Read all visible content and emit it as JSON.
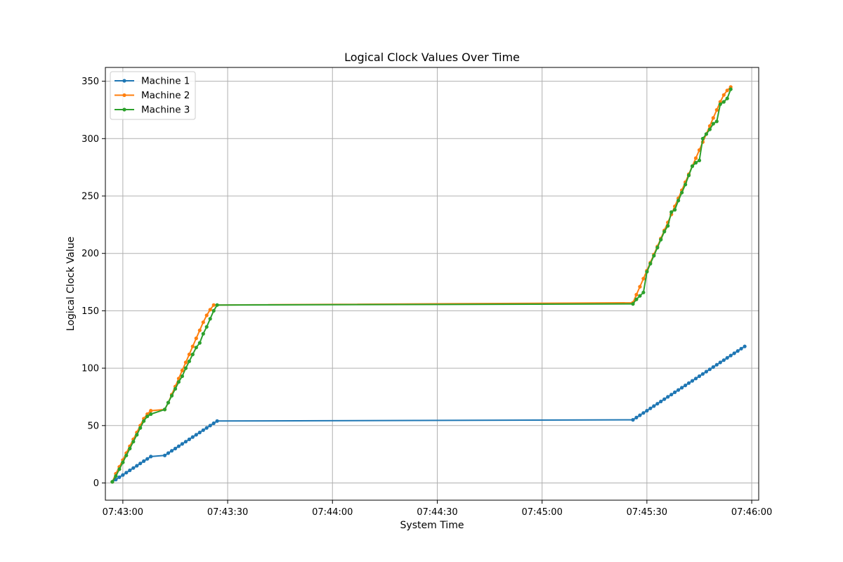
{
  "chart_data": {
    "type": "line",
    "title": "Logical Clock Values Over Time",
    "xlabel": "System Time",
    "ylabel": "Logical Clock Value",
    "xlim": [
      "07:42:55",
      "07:46:02"
    ],
    "ylim": [
      -15,
      362
    ],
    "xticks": [
      "07:43:00",
      "07:43:30",
      "07:44:00",
      "07:44:30",
      "07:45:00",
      "07:45:30",
      "07:46:00"
    ],
    "yticks": [
      0,
      50,
      100,
      150,
      200,
      250,
      300,
      350
    ],
    "grid": true,
    "legend_position": "top-left",
    "series": [
      {
        "name": "Machine 1",
        "color": "#1f77b4",
        "points": [
          [
            "07:42:57",
            1
          ],
          [
            "07:42:58",
            3
          ],
          [
            "07:42:59",
            5
          ],
          [
            "07:43:00",
            7
          ],
          [
            "07:43:01",
            9
          ],
          [
            "07:43:02",
            11
          ],
          [
            "07:43:03",
            13
          ],
          [
            "07:43:04",
            15
          ],
          [
            "07:43:05",
            17
          ],
          [
            "07:43:06",
            19
          ],
          [
            "07:43:07",
            21
          ],
          [
            "07:43:08",
            23
          ],
          [
            "07:43:12",
            24
          ],
          [
            "07:43:13",
            26
          ],
          [
            "07:43:14",
            28
          ],
          [
            "07:43:15",
            30
          ],
          [
            "07:43:16",
            32
          ],
          [
            "07:43:17",
            34
          ],
          [
            "07:43:18",
            36
          ],
          [
            "07:43:19",
            38
          ],
          [
            "07:43:20",
            40
          ],
          [
            "07:43:21",
            42
          ],
          [
            "07:43:22",
            44
          ],
          [
            "07:43:23",
            46
          ],
          [
            "07:43:24",
            48
          ],
          [
            "07:43:25",
            50
          ],
          [
            "07:43:26",
            52
          ],
          [
            "07:43:27",
            54
          ],
          [
            "07:45:26",
            55
          ],
          [
            "07:45:27",
            57
          ],
          [
            "07:45:28",
            59
          ],
          [
            "07:45:29",
            61
          ],
          [
            "07:45:30",
            63
          ],
          [
            "07:45:31",
            65
          ],
          [
            "07:45:32",
            67
          ],
          [
            "07:45:33",
            69
          ],
          [
            "07:45:34",
            71
          ],
          [
            "07:45:35",
            73
          ],
          [
            "07:45:36",
            75
          ],
          [
            "07:45:37",
            77
          ],
          [
            "07:45:38",
            79
          ],
          [
            "07:45:39",
            81
          ],
          [
            "07:45:40",
            83
          ],
          [
            "07:45:41",
            85
          ],
          [
            "07:45:42",
            87
          ],
          [
            "07:45:43",
            89
          ],
          [
            "07:45:44",
            91
          ],
          [
            "07:45:45",
            93
          ],
          [
            "07:45:46",
            95
          ],
          [
            "07:45:47",
            97
          ],
          [
            "07:45:48",
            99
          ],
          [
            "07:45:49",
            101
          ],
          [
            "07:45:50",
            103
          ],
          [
            "07:45:51",
            105
          ],
          [
            "07:45:52",
            107
          ],
          [
            "07:45:53",
            109
          ],
          [
            "07:45:54",
            111
          ],
          [
            "07:45:55",
            113
          ],
          [
            "07:45:56",
            115
          ],
          [
            "07:45:57",
            117
          ],
          [
            "07:45:58",
            119
          ]
        ]
      },
      {
        "name": "Machine 2",
        "color": "#ff7f0e",
        "points": [
          [
            "07:42:57",
            1
          ],
          [
            "07:42:58",
            8
          ],
          [
            "07:42:59",
            14
          ],
          [
            "07:43:00",
            20
          ],
          [
            "07:43:01",
            26
          ],
          [
            "07:43:02",
            32
          ],
          [
            "07:43:03",
            38
          ],
          [
            "07:43:04",
            44
          ],
          [
            "07:43:05",
            50
          ],
          [
            "07:43:06",
            56
          ],
          [
            "07:43:07",
            60
          ],
          [
            "07:43:08",
            63
          ],
          [
            "07:43:12",
            64
          ],
          [
            "07:43:13",
            70
          ],
          [
            "07:43:14",
            77
          ],
          [
            "07:43:15",
            84
          ],
          [
            "07:43:16",
            91
          ],
          [
            "07:43:17",
            98
          ],
          [
            "07:43:18",
            105
          ],
          [
            "07:43:19",
            112
          ],
          [
            "07:43:20",
            119
          ],
          [
            "07:43:21",
            126
          ],
          [
            "07:43:22",
            133
          ],
          [
            "07:43:23",
            140
          ],
          [
            "07:43:24",
            146
          ],
          [
            "07:43:25",
            151
          ],
          [
            "07:43:26",
            155
          ],
          [
            "07:45:26",
            157
          ],
          [
            "07:45:27",
            164
          ],
          [
            "07:45:28",
            171
          ],
          [
            "07:45:29",
            178
          ],
          [
            "07:45:30",
            185
          ],
          [
            "07:45:31",
            192
          ],
          [
            "07:45:32",
            199
          ],
          [
            "07:45:33",
            206
          ],
          [
            "07:45:34",
            213
          ],
          [
            "07:45:35",
            220
          ],
          [
            "07:45:36",
            227
          ],
          [
            "07:45:37",
            234
          ],
          [
            "07:45:38",
            241
          ],
          [
            "07:45:39",
            248
          ],
          [
            "07:45:40",
            255
          ],
          [
            "07:45:41",
            262
          ],
          [
            "07:45:42",
            269
          ],
          [
            "07:45:43",
            276
          ],
          [
            "07:45:44",
            283
          ],
          [
            "07:45:45",
            290
          ],
          [
            "07:45:46",
            297
          ],
          [
            "07:45:47",
            304
          ],
          [
            "07:45:48",
            311
          ],
          [
            "07:45:49",
            318
          ],
          [
            "07:45:50",
            325
          ],
          [
            "07:45:51",
            332
          ],
          [
            "07:45:52",
            338
          ],
          [
            "07:45:53",
            342
          ],
          [
            "07:45:54",
            345
          ]
        ]
      },
      {
        "name": "Machine 3",
        "color": "#2ca02c",
        "points": [
          [
            "07:42:57",
            1
          ],
          [
            "07:42:58",
            6
          ],
          [
            "07:42:59",
            12
          ],
          [
            "07:43:00",
            18
          ],
          [
            "07:43:01",
            24
          ],
          [
            "07:43:02",
            30
          ],
          [
            "07:43:03",
            36
          ],
          [
            "07:43:04",
            42
          ],
          [
            "07:43:05",
            48
          ],
          [
            "07:43:06",
            54
          ],
          [
            "07:43:07",
            58
          ],
          [
            "07:43:08",
            60
          ],
          [
            "07:43:12",
            64
          ],
          [
            "07:43:13",
            70
          ],
          [
            "07:43:14",
            76
          ],
          [
            "07:43:15",
            82
          ],
          [
            "07:43:16",
            88
          ],
          [
            "07:43:17",
            93
          ],
          [
            "07:43:18",
            100
          ],
          [
            "07:43:19",
            106
          ],
          [
            "07:43:20",
            112
          ],
          [
            "07:43:21",
            118
          ],
          [
            "07:43:22",
            122
          ],
          [
            "07:43:23",
            130
          ],
          [
            "07:43:24",
            136
          ],
          [
            "07:43:25",
            143
          ],
          [
            "07:43:26",
            150
          ],
          [
            "07:43:27",
            155
          ],
          [
            "07:45:26",
            156
          ],
          [
            "07:45:27",
            160
          ],
          [
            "07:45:28",
            163
          ],
          [
            "07:45:29",
            166
          ],
          [
            "07:45:30",
            184
          ],
          [
            "07:45:31",
            191
          ],
          [
            "07:45:32",
            198
          ],
          [
            "07:45:33",
            205
          ],
          [
            "07:45:34",
            212
          ],
          [
            "07:45:35",
            219
          ],
          [
            "07:45:36",
            224
          ],
          [
            "07:45:37",
            236
          ],
          [
            "07:45:38",
            238
          ],
          [
            "07:45:39",
            246
          ],
          [
            "07:45:40",
            253
          ],
          [
            "07:45:41",
            260
          ],
          [
            "07:45:42",
            268
          ],
          [
            "07:45:43",
            276
          ],
          [
            "07:45:44",
            279
          ],
          [
            "07:45:45",
            281
          ],
          [
            "07:45:46",
            300
          ],
          [
            "07:45:47",
            304
          ],
          [
            "07:45:48",
            308
          ],
          [
            "07:45:49",
            313
          ],
          [
            "07:45:50",
            315
          ],
          [
            "07:45:51",
            330
          ],
          [
            "07:45:52",
            332
          ],
          [
            "07:45:53",
            335
          ],
          [
            "07:45:54",
            343
          ]
        ]
      }
    ]
  }
}
